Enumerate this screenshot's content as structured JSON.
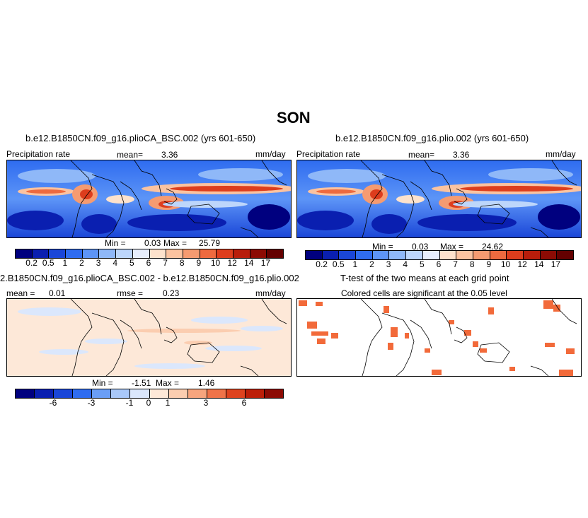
{
  "figure": {
    "season": "SON"
  },
  "panels": [
    {
      "title": "b.e12.B1850CN.f09_g16.plioCA_BSC.002 (yrs 601-650)",
      "left_label": "Precipitation rate",
      "mean_label": "mean=",
      "mean_value": "3.36",
      "units": "mm/day",
      "min_label": "Min =",
      "min_value": "0.03",
      "max_label": "Max =",
      "max_value": "25.79",
      "tick_labels": [
        "0.2",
        "0.5",
        "1",
        "2",
        "3",
        "4",
        "5",
        "6",
        "7",
        "8",
        "9",
        "10",
        "12",
        "14",
        "17"
      ]
    },
    {
      "title": "b.e12.B1850CN.f09_g16.plio.002 (yrs 601-650)",
      "left_label": "Precipitation rate",
      "mean_label": "mean=",
      "mean_value": "3.36",
      "units": "mm/day",
      "min_label": "Min =",
      "min_value": "0.03",
      "max_label": "Max =",
      "max_value": "24.62",
      "tick_labels": [
        "0.2",
        "0.5",
        "1",
        "2",
        "3",
        "4",
        "5",
        "6",
        "7",
        "8",
        "9",
        "10",
        "12",
        "14",
        "17"
      ]
    },
    {
      "title": "2.B1850CN.f09_g16.plioCA_BSC.002 - b.e12.B1850CN.f09_g16.plio.002",
      "mean_label": "mean =",
      "mean_value": "0.01",
      "rmse_label": "rmse =",
      "rmse_value": "0.23",
      "units": "mm/day",
      "min_label": "Min =",
      "min_value": "-1.51",
      "max_label": "Max =",
      "max_value": "1.46",
      "tick_labels": [
        "-6",
        "-3",
        "-1",
        "0",
        "1",
        "3",
        "6"
      ]
    },
    {
      "title": "T-test of the two means at each grid point",
      "subtitle": "Colored cells are significant at the 0.05 level"
    }
  ],
  "colors": {
    "precip_scale": [
      "#00007f",
      "#0a1fb0",
      "#1a46d8",
      "#2f6cf0",
      "#5d95f7",
      "#8fb8f8",
      "#bdd6fb",
      "#e7eefc",
      "#fde2cc",
      "#fbc3a0",
      "#f59b71",
      "#ee6a3f",
      "#dd3d1d",
      "#b81d0b",
      "#8c0b04",
      "#640000"
    ],
    "diff_scale": [
      "#00007f",
      "#0a1fb0",
      "#1a46d8",
      "#2f6cf0",
      "#6a9ef6",
      "#a9c8f9",
      "#dbe7fc",
      "#fde8d8",
      "#fbcdb0",
      "#f7a57e",
      "#ef7349",
      "#de431f",
      "#bc1f09",
      "#8c0b04"
    ],
    "significance": "#f26a3a"
  },
  "chart_data": {
    "type": "heatmap",
    "variable": "Precipitation rate",
    "units": "mm/day",
    "season": "SON",
    "maps": [
      {
        "case": "b.e12.B1850CN.f09_g16.plioCA_BSC.002",
        "years": "601-650",
        "mean": 3.36,
        "min": 0.03,
        "max": 25.79
      },
      {
        "case": "b.e12.B1850CN.f09_g16.plio.002",
        "years": "601-650",
        "mean": 3.36,
        "min": 0.03,
        "max": 24.62
      },
      {
        "case": "difference",
        "mean": 0.01,
        "rmse": 0.23,
        "min": -1.51,
        "max": 1.46
      },
      {
        "case": "t-test",
        "significance_level": 0.05
      }
    ],
    "precip_levels": [
      0.2,
      0.5,
      1,
      2,
      3,
      4,
      5,
      6,
      7,
      8,
      9,
      10,
      12,
      14,
      17
    ],
    "diff_levels": [
      -6,
      -3,
      -1,
      0,
      1,
      3,
      6
    ]
  }
}
